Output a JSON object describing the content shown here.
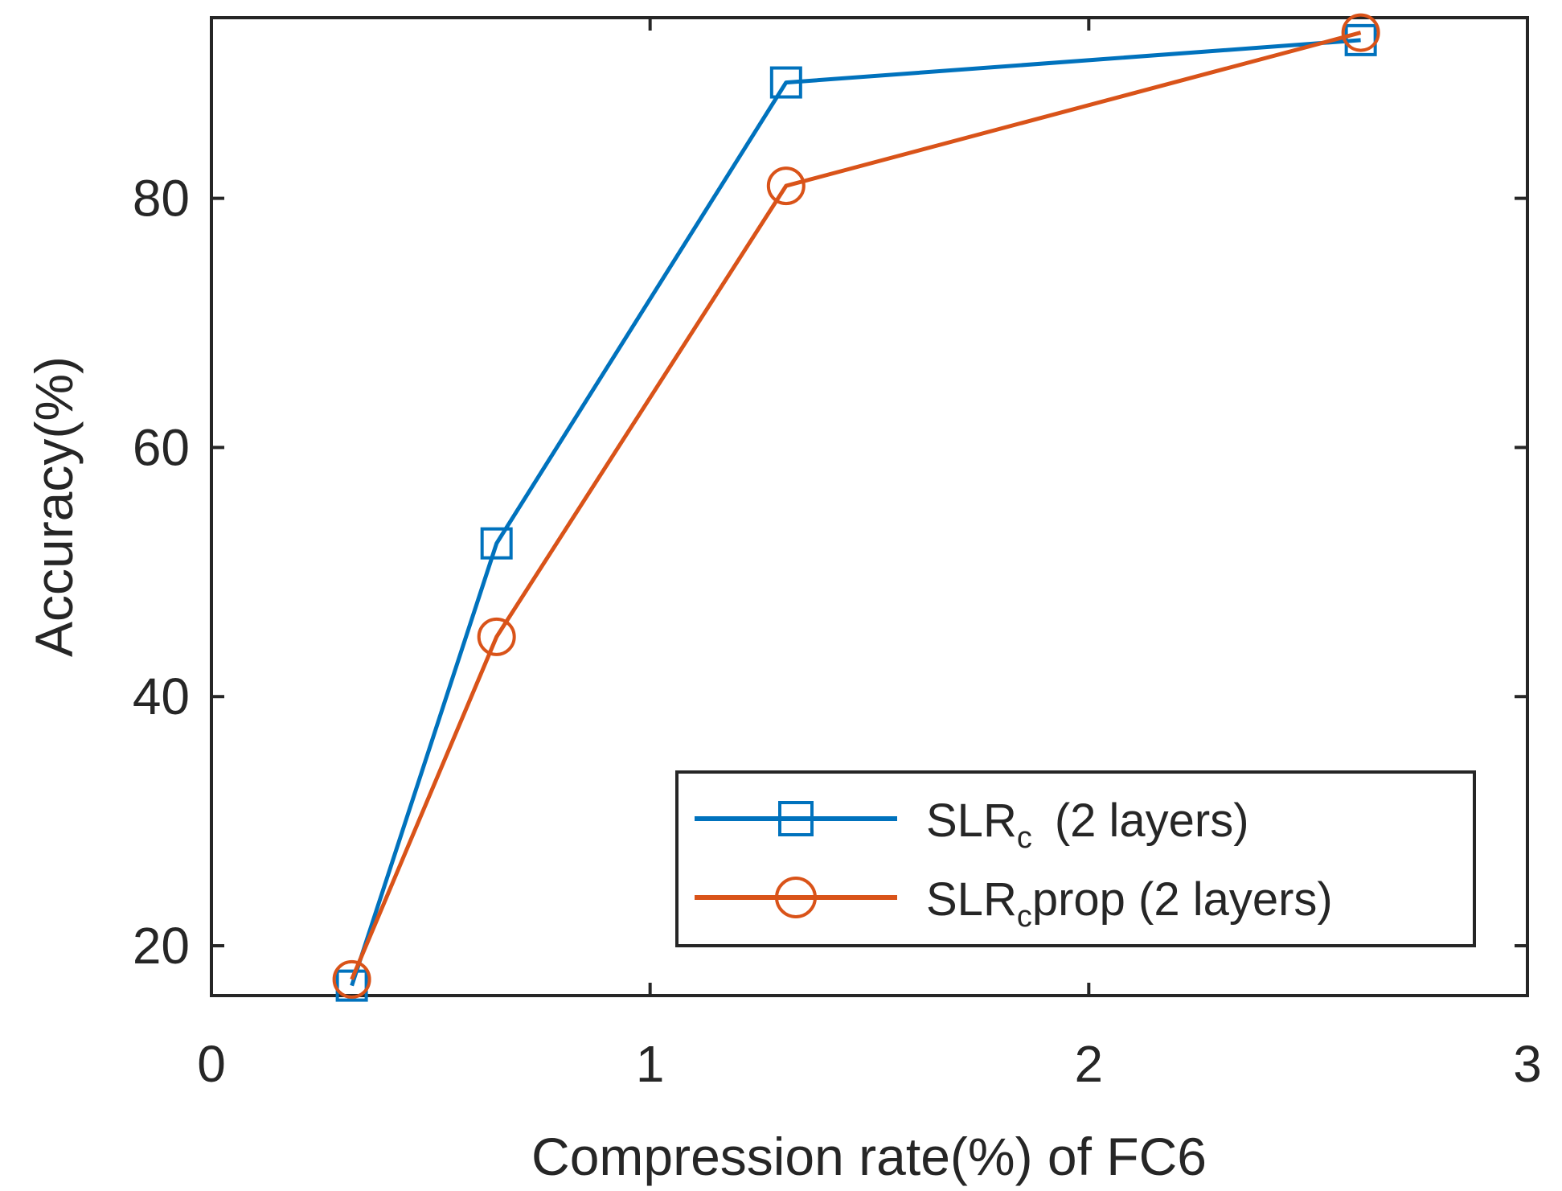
{
  "chart_data": {
    "type": "line",
    "title": "",
    "xlabel": "Compression rate(%) of FC6",
    "ylabel": "Accuracy(%)",
    "xlim": [
      0,
      3
    ],
    "ylim": [
      16,
      94.5
    ],
    "xticks": [
      0,
      1,
      2,
      3
    ],
    "yticks": [
      20,
      40,
      60,
      80
    ],
    "grid": false,
    "legend_position": "bottom-right",
    "series": [
      {
        "name": "SLRc (2 layers)",
        "legend_main": "SLR",
        "legend_sub": "c",
        "legend_tail": "(2 layers)",
        "color": "#0072BD",
        "marker": "square",
        "x": [
          0.32,
          0.65,
          1.31,
          2.62
        ],
        "y": [
          16.8,
          52.3,
          89.3,
          92.7
        ]
      },
      {
        "name": "SLRcprop (2 layers)",
        "legend_main": "SLR",
        "legend_sub": "c",
        "legend_tail": "prop (2 layers)",
        "color": "#D95319",
        "marker": "circle",
        "x": [
          0.32,
          0.65,
          1.31,
          2.62
        ],
        "y": [
          17.3,
          44.8,
          81.0,
          93.3
        ]
      }
    ]
  }
}
